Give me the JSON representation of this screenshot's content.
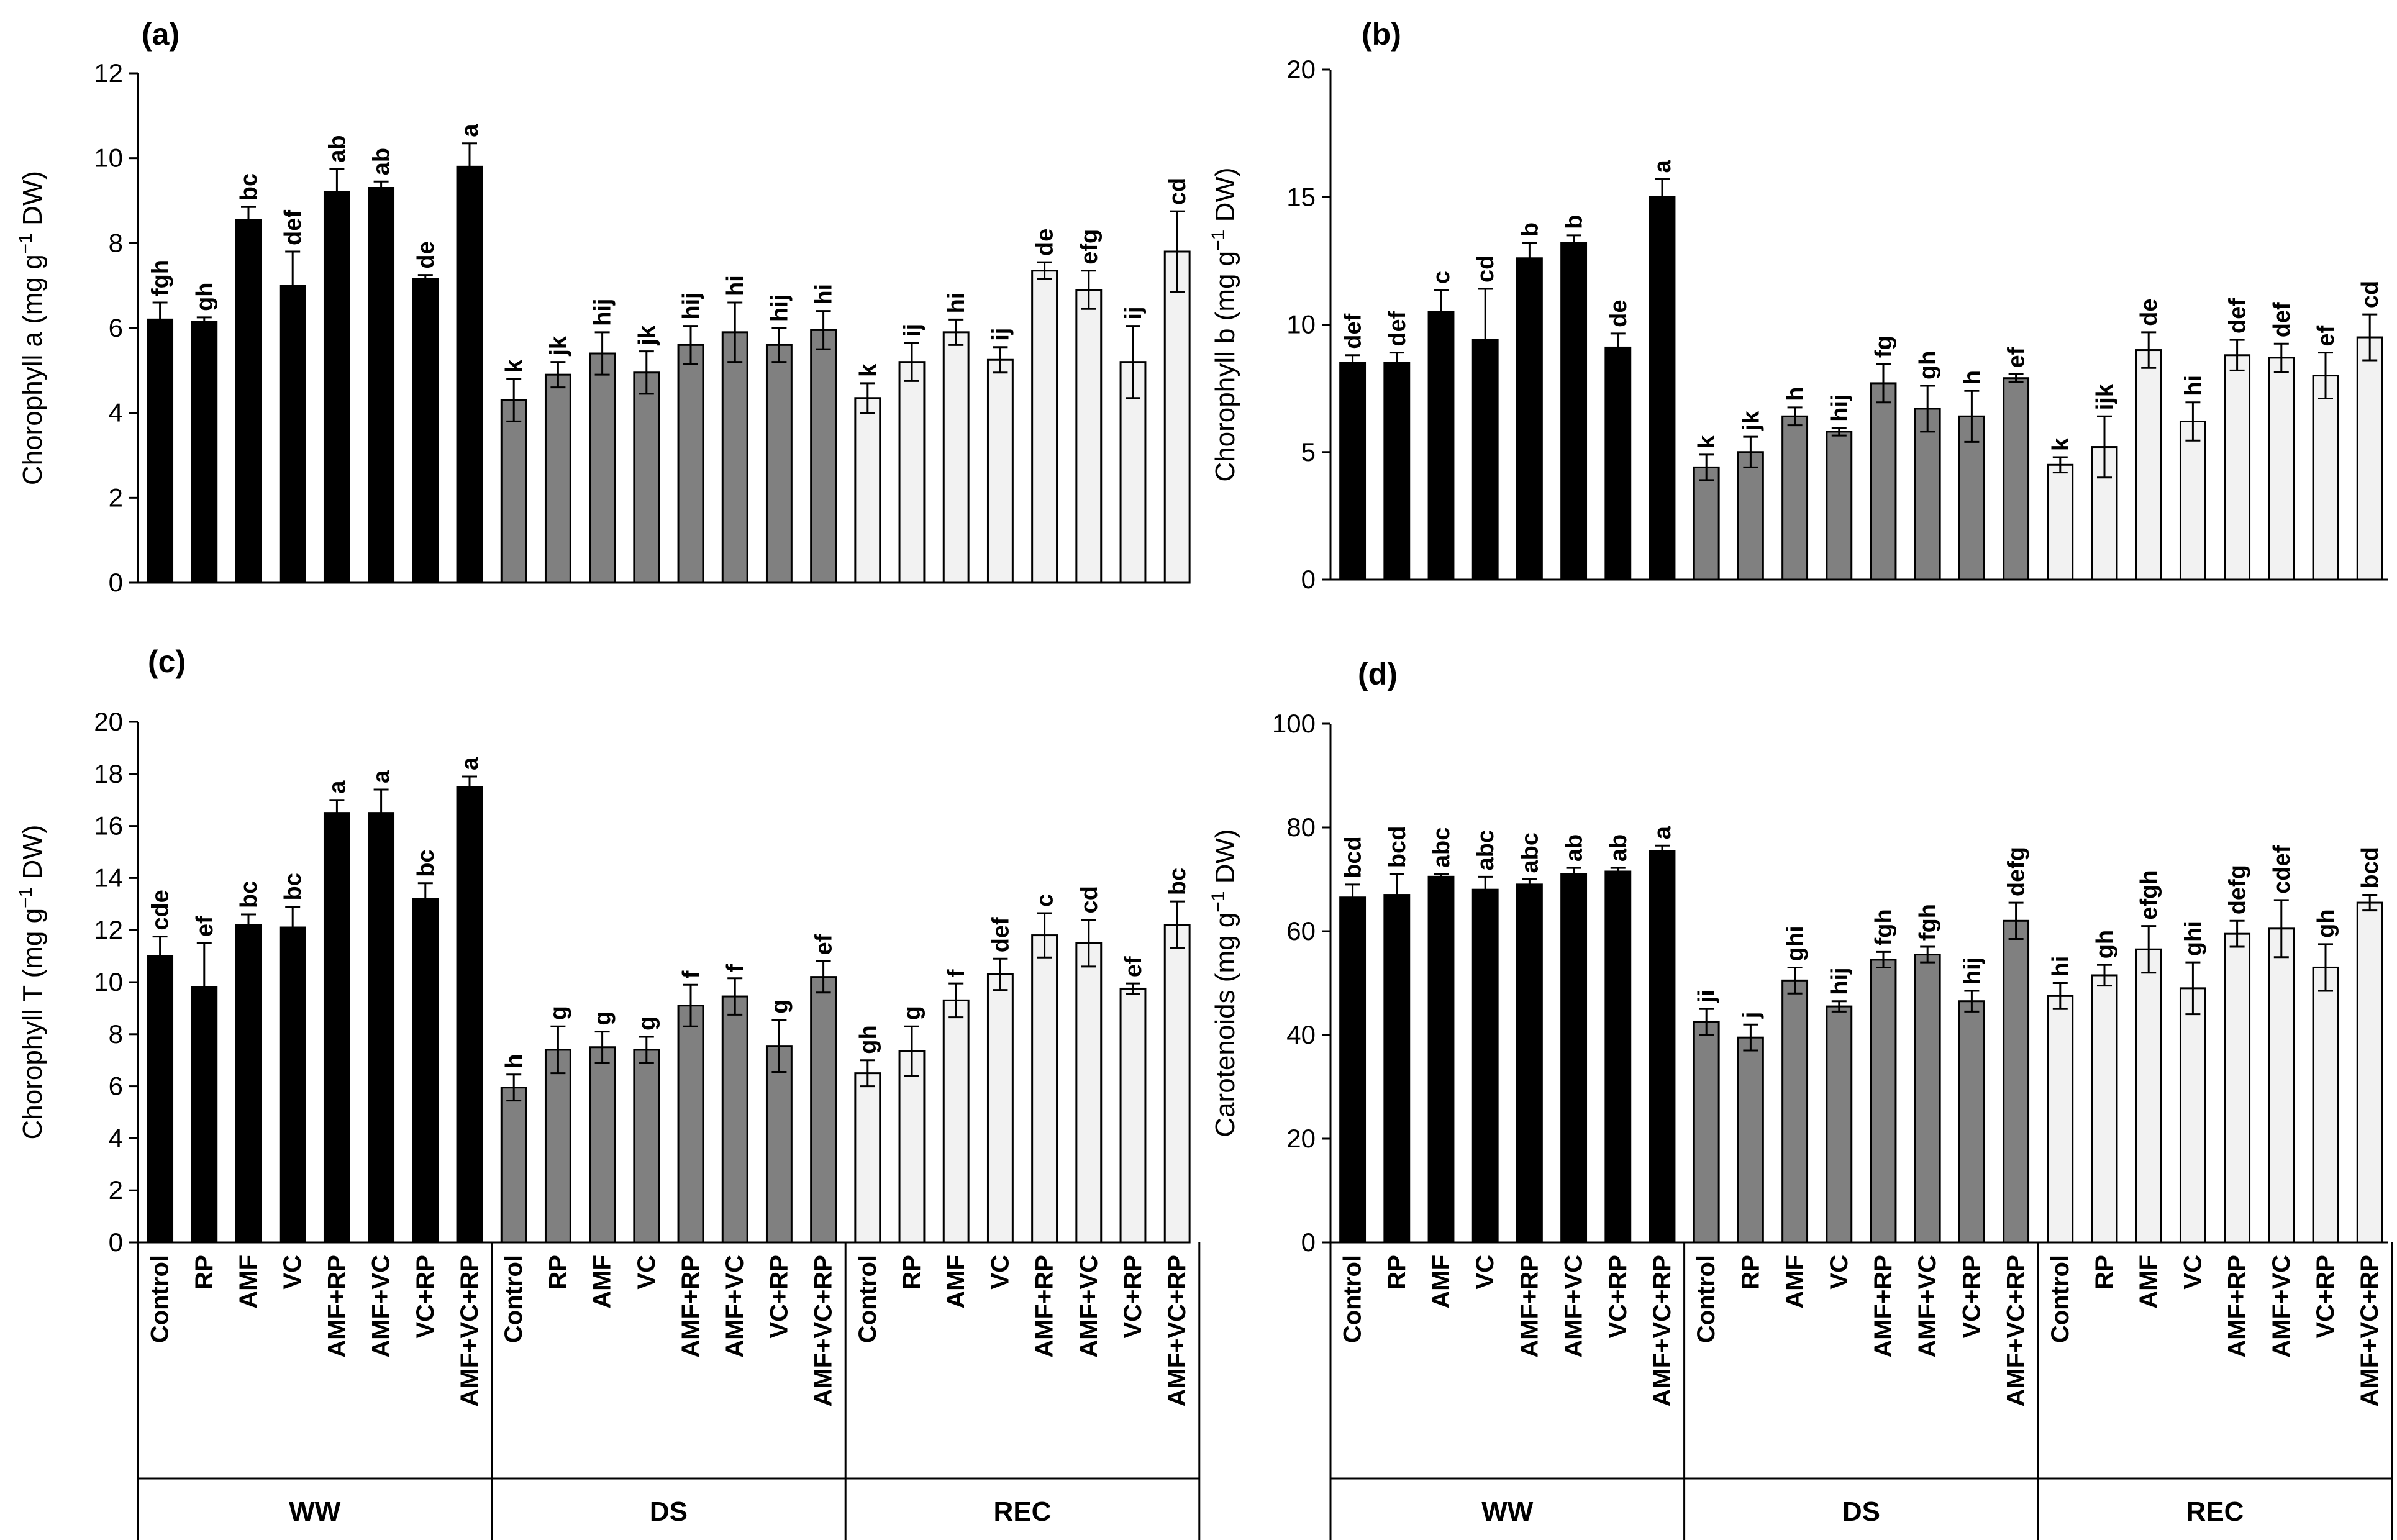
{
  "categories": [
    "Control",
    "RP",
    "AMF",
    "VC",
    "AMF+RP",
    "AMF+VC",
    "VC+RP",
    "AMF+VC+RP"
  ],
  "groups": [
    {
      "name": "WW",
      "color": "#000000"
    },
    {
      "name": "DS",
      "color": "#808080"
    },
    {
      "name": "REC",
      "color": "#f2f2f2"
    }
  ],
  "chart_data": [
    {
      "type": "bar",
      "panel": "(a)",
      "ylabel_main": "Chorophyll a (mg g",
      "ylabel_sup": "−1",
      "ylabel_end": " DW)",
      "ylim": [
        0,
        12
      ],
      "yticks": [
        "0",
        "2",
        "4",
        "6",
        "8",
        "10",
        "12"
      ],
      "series": [
        {
          "name": "WW",
          "values": [
            6.2,
            6.15,
            8.55,
            7.0,
            9.2,
            9.3,
            7.15,
            9.8
          ],
          "errors": [
            0.4,
            0.1,
            0.3,
            0.8,
            0.55,
            0.15,
            0.1,
            0.55
          ],
          "letters": [
            "fgh",
            "gh",
            "bc",
            "def",
            "ab",
            "ab",
            "de",
            "a"
          ]
        },
        {
          "name": "DS",
          "values": [
            4.3,
            4.9,
            5.4,
            4.95,
            5.6,
            5.9,
            5.6,
            5.95
          ],
          "errors": [
            0.5,
            0.3,
            0.5,
            0.5,
            0.45,
            0.7,
            0.4,
            0.45
          ],
          "letters": [
            "k",
            "jk",
            "hij",
            "jk",
            "hij",
            "hi",
            "hij",
            "hi"
          ]
        },
        {
          "name": "REC",
          "values": [
            4.35,
            5.2,
            5.9,
            5.25,
            7.35,
            6.9,
            5.2,
            7.8
          ],
          "errors": [
            0.35,
            0.45,
            0.3,
            0.3,
            0.2,
            0.45,
            0.85,
            0.95
          ],
          "letters": [
            "k",
            "ij",
            "hi",
            "ij",
            "de",
            "efg",
            "ij",
            "cd"
          ]
        }
      ]
    },
    {
      "type": "bar",
      "panel": "(b)",
      "ylabel_main": "Chorophyll b (mg g",
      "ylabel_sup": "−1",
      "ylabel_end": " DW)",
      "ylim": [
        0,
        20
      ],
      "yticks": [
        "0",
        "5",
        "10",
        "15",
        "20"
      ],
      "series": [
        {
          "name": "WW",
          "values": [
            8.5,
            8.5,
            10.5,
            9.4,
            12.6,
            13.2,
            9.1,
            15.0
          ],
          "errors": [
            0.3,
            0.4,
            0.85,
            2.0,
            0.6,
            0.3,
            0.55,
            0.7
          ],
          "letters": [
            "def",
            "def",
            "c",
            "cd",
            "b",
            "b",
            "de",
            "a"
          ]
        },
        {
          "name": "DS",
          "values": [
            4.4,
            5.0,
            6.4,
            5.8,
            7.7,
            6.7,
            6.4,
            7.9
          ],
          "errors": [
            0.5,
            0.6,
            0.35,
            0.15,
            0.75,
            0.9,
            1.0,
            0.15
          ],
          "letters": [
            "k",
            "jk",
            "h",
            "hij",
            "fg",
            "gh",
            "h",
            "ef"
          ]
        },
        {
          "name": "REC",
          "values": [
            4.5,
            5.2,
            9.0,
            6.2,
            8.8,
            8.7,
            8.0,
            9.5
          ],
          "errors": [
            0.3,
            1.2,
            0.7,
            0.75,
            0.6,
            0.55,
            0.9,
            0.9
          ],
          "letters": [
            "k",
            "ijk",
            "de",
            "hi",
            "def",
            "def",
            "ef",
            "cd"
          ]
        }
      ]
    },
    {
      "type": "bar",
      "panel": "(c)",
      "ylabel_main": "Chorophyll T (mg g",
      "ylabel_sup": "−1",
      "ylabel_end": " DW)",
      "ylim": [
        0,
        20
      ],
      "yticks": [
        "0",
        "2",
        "4",
        "6",
        "8",
        "10",
        "12",
        "14",
        "16",
        "18",
        "20"
      ],
      "series": [
        {
          "name": "WW",
          "values": [
            11.0,
            9.8,
            12.2,
            12.1,
            16.5,
            16.5,
            13.2,
            17.5
          ],
          "errors": [
            0.75,
            1.7,
            0.4,
            0.8,
            0.5,
            0.9,
            0.6,
            0.4
          ],
          "letters": [
            "cde",
            "ef",
            "bc",
            "bc",
            "a",
            "a",
            "bc",
            "a"
          ]
        },
        {
          "name": "DS",
          "values": [
            5.95,
            7.4,
            7.5,
            7.4,
            9.1,
            9.45,
            7.55,
            10.2
          ],
          "errors": [
            0.5,
            0.9,
            0.6,
            0.5,
            0.8,
            0.7,
            1.0,
            0.6
          ],
          "letters": [
            "h",
            "g",
            "g",
            "g",
            "f",
            "f",
            "g",
            "ef"
          ]
        },
        {
          "name": "REC",
          "values": [
            6.5,
            7.35,
            9.3,
            10.3,
            11.8,
            11.5,
            9.75,
            12.2
          ],
          "errors": [
            0.5,
            0.95,
            0.65,
            0.6,
            0.85,
            0.9,
            0.2,
            0.9
          ],
          "letters": [
            "gh",
            "g",
            "f",
            "def",
            "c",
            "cd",
            "ef",
            "bc"
          ]
        }
      ]
    },
    {
      "type": "bar",
      "panel": "(d)",
      "ylabel_main": "Carotenoids (mg g",
      "ylabel_sup": "−1",
      "ylabel_end": " DW)",
      "ylim": [
        0,
        100
      ],
      "yticks": [
        "0",
        "20",
        "40",
        "60",
        "80",
        "100"
      ],
      "series": [
        {
          "name": "WW",
          "values": [
            66.5,
            67.0,
            70.5,
            68.0,
            69.0,
            71.0,
            71.5,
            75.5
          ],
          "errors": [
            2.5,
            4.0,
            0.5,
            2.5,
            1.0,
            1.2,
            0.7,
            1.0
          ],
          "letters": [
            "bcd",
            "bcd",
            "abc",
            "abc",
            "abc",
            "ab",
            "ab",
            "a"
          ]
        },
        {
          "name": "DS",
          "values": [
            42.5,
            39.5,
            50.5,
            45.5,
            54.5,
            55.5,
            46.5,
            62.0
          ],
          "errors": [
            2.5,
            2.5,
            2.5,
            1.0,
            1.5,
            1.5,
            2.0,
            3.5
          ],
          "letters": [
            "ji",
            "j",
            "ghi",
            "hij",
            "fgh",
            "fgh",
            "hij",
            "defg"
          ]
        },
        {
          "name": "REC",
          "values": [
            47.5,
            51.5,
            56.5,
            49.0,
            59.5,
            60.5,
            53.0,
            65.5
          ],
          "errors": [
            2.5,
            2.0,
            4.5,
            5.0,
            2.5,
            5.5,
            4.5,
            1.5
          ],
          "letters": [
            "hi",
            "gh",
            "efgh",
            "ghi",
            "defg",
            "cdef",
            "gh",
            "bcd"
          ]
        }
      ]
    }
  ]
}
